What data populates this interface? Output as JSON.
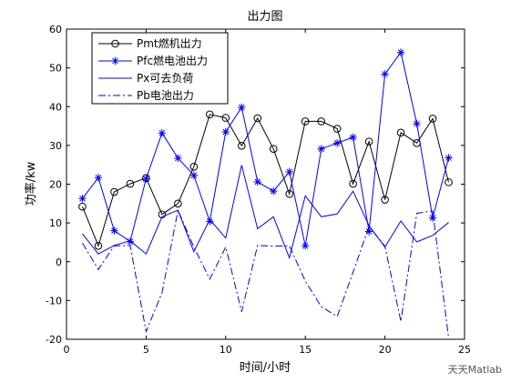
{
  "chart_data": {
    "type": "line",
    "title": "出力图",
    "xlabel": "时间/小时",
    "ylabel": "功率/kw",
    "xlim": [
      0,
      25
    ],
    "ylim": [
      -20,
      60
    ],
    "xticks": [
      0,
      5,
      10,
      15,
      20,
      25
    ],
    "yticks": [
      -20,
      -10,
      0,
      10,
      20,
      30,
      40,
      50,
      60
    ],
    "grid": false,
    "legend_position": "top-left",
    "x": [
      1,
      2,
      3,
      4,
      5,
      6,
      7,
      8,
      9,
      10,
      11,
      12,
      13,
      14,
      15,
      16,
      17,
      18,
      19,
      20,
      21,
      22,
      23,
      24
    ],
    "series": [
      {
        "name": "Pmt燃机出力",
        "style": "solid",
        "marker": "circle",
        "color": "#000000",
        "values": [
          14.2,
          4.1,
          18.0,
          20.1,
          21.6,
          12.2,
          15.0,
          24.5,
          38.0,
          37.1,
          29.9,
          37.0,
          29.1,
          17.5,
          36.2,
          36.2,
          34.3,
          20.1,
          31.0,
          16.0,
          33.3,
          30.6,
          36.9,
          20.5
        ]
      },
      {
        "name": "Pfc燃电池出力",
        "style": "solid",
        "marker": "star",
        "color": "#0000ff",
        "values": [
          16.3,
          21.7,
          8.0,
          5.2,
          21.4,
          33.2,
          26.7,
          22.3,
          10.4,
          33.5,
          39.8,
          20.6,
          18.2,
          23.2,
          4.1,
          29.1,
          30.6,
          32.1,
          7.8,
          48.4,
          54.0,
          35.6,
          11.3,
          26.8
        ]
      },
      {
        "name": "Px可去负荷",
        "style": "solid",
        "marker": "none",
        "color": "#0000ff",
        "values": [
          7.2,
          2.0,
          4.2,
          5.4,
          2.0,
          11.6,
          13.3,
          2.6,
          10.9,
          6.1,
          24.9,
          8.5,
          11.6,
          1.0,
          17.0,
          11.6,
          12.3,
          18.2,
          9.3,
          3.8,
          10.5,
          5.1,
          6.8,
          10.1
        ]
      },
      {
        "name": "Pb电池出力",
        "style": "dashdot",
        "marker": "none",
        "color": "#0000ff",
        "values": [
          4.8,
          -2.0,
          4.1,
          4.2,
          -18.0,
          -8.0,
          13.3,
          3.8,
          -4.5,
          3.8,
          -12.9,
          4.2,
          4.0,
          4.1,
          -5.0,
          -11.6,
          -14.1,
          -2.7,
          9.1,
          4.0,
          -15.4,
          12.5,
          13.1,
          -19.6
        ]
      }
    ]
  },
  "watermark": "天天Matlab"
}
